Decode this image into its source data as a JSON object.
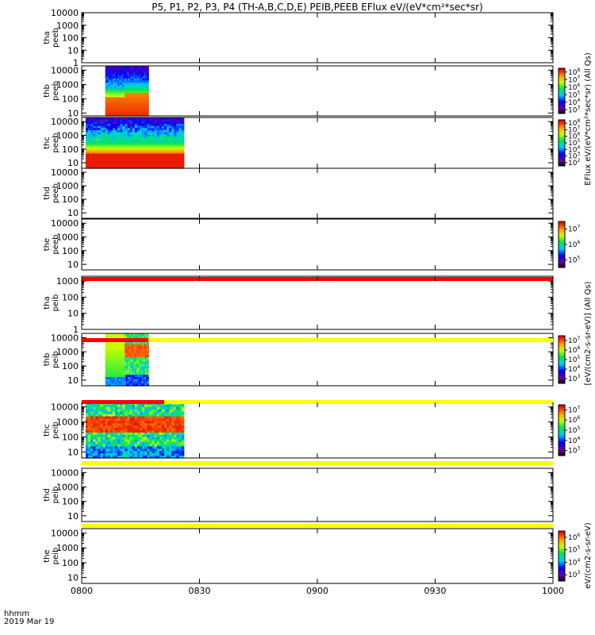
{
  "chart_data": {
    "type": "heatmap",
    "title": "P5, P1, P2, P3, P4 (TH-A,B,C,D,E) PEIB,PEEB EFlux eV/(eV*cm²*sec*sr)",
    "time_label": "hhmm",
    "date_label": "2019 Mar 19",
    "time_range": [
      "08:00",
      "10:00"
    ],
    "x_ticks": [
      "0800",
      "0830",
      "0900",
      "0930",
      "1000"
    ],
    "panels": [
      {
        "probe": "tha",
        "species": "peeb",
        "yticks": [
          "10000",
          "1000",
          "100",
          "10",
          "1"
        ],
        "ylog": [
          0,
          4
        ],
        "blocks": [],
        "colorbar": null
      },
      {
        "probe": "thb",
        "species": "peeb",
        "yticks": [
          "10000",
          "1000",
          "100",
          "10"
        ],
        "ylog": [
          0.8,
          4.3
        ],
        "blocks": [
          {
            "t0": "08:06",
            "t1": "08:17",
            "profile": "electron-b"
          }
        ],
        "colorbar": {
          "ticks": [
            "10^8",
            "10^7",
            "10^6",
            "10^5",
            "10^4",
            "10^3"
          ]
        }
      },
      {
        "probe": "thc",
        "species": "peeb",
        "yticks": [
          "10000",
          "1000",
          "100",
          "10"
        ],
        "ylog": [
          0.6,
          4.3
        ],
        "blocks": [
          {
            "t0": "08:01",
            "t1": "08:26",
            "profile": "electron-c"
          }
        ],
        "colorbar": {
          "ticks": [
            "10^8",
            "10^7",
            "10^6",
            "10^5",
            "10^4",
            "10^3",
            "10^2"
          ]
        }
      },
      {
        "probe": "thd",
        "species": "peeb",
        "yticks": [
          "10000",
          "1000",
          "100",
          "10"
        ],
        "ylog": [
          0.6,
          4.3
        ],
        "blocks": [],
        "colorbar": null
      },
      {
        "probe": "the",
        "species": "peeb",
        "yticks": [
          "10000",
          "1000",
          "100",
          "10"
        ],
        "ylog": [
          0.6,
          4.3
        ],
        "blocks": [],
        "colorbar": {
          "ticks": [
            "10^7",
            "10^6",
            "10^5"
          ]
        }
      },
      {
        "probe": "tha",
        "species": "peib",
        "yticks": [
          "1000",
          "100",
          "10",
          "1"
        ],
        "ylog": [
          0,
          3.3
        ],
        "blocks": [],
        "colorbar": null
      },
      {
        "probe": "thb",
        "species": "peib",
        "yticks": [
          "10000",
          "1000",
          "100",
          "10"
        ],
        "ylog": [
          0.6,
          4.3
        ],
        "blocks": [
          {
            "t0": "08:06",
            "t1": "08:17",
            "profile": "ion-b"
          }
        ],
        "colorbar": {
          "ticks": [
            "10^7",
            "10^6",
            "10^5",
            "10^4",
            "10^3"
          ]
        }
      },
      {
        "probe": "thc",
        "species": "peib",
        "yticks": [
          "10000",
          "1000",
          "100",
          "10"
        ],
        "ylog": [
          0.6,
          4.3
        ],
        "blocks": [
          {
            "t0": "08:01",
            "t1": "08:26",
            "profile": "ion-c"
          }
        ],
        "colorbar": {
          "ticks": [
            "10^7",
            "10^6",
            "10^5",
            "10^4",
            "10^3"
          ]
        }
      },
      {
        "probe": "thd",
        "species": "peib",
        "yticks": [
          "10000",
          "1000",
          "100",
          "10"
        ],
        "ylog": [
          0.6,
          4.3
        ],
        "blocks": [],
        "colorbar": null
      },
      {
        "probe": "the",
        "species": "peib",
        "yticks": [
          "10000",
          "1000",
          "100",
          "10"
        ],
        "ylog": [
          0.6,
          4.3
        ],
        "blocks": [],
        "colorbar": {
          "ticks": [
            "10^6",
            "10^5",
            "10^4",
            "10^3"
          ]
        }
      }
    ],
    "mode_bars": [
      {
        "after_panel": 4,
        "segments": [
          {
            "t0": "08:00",
            "t1": "10:00",
            "color": "#ff0000"
          }
        ]
      },
      {
        "after_panel": 5,
        "segments": [
          {
            "t0": "08:00",
            "t1": "08:17",
            "color": "#ff0000"
          },
          {
            "t0": "08:17",
            "t1": "10:00",
            "color": "#ffff00"
          }
        ]
      },
      {
        "after_panel": 6,
        "segments": [
          {
            "t0": "08:00",
            "t1": "08:21",
            "color": "#ff0000"
          },
          {
            "t0": "08:21",
            "t1": "10:00",
            "color": "#ffff00"
          }
        ]
      },
      {
        "after_panel": 7,
        "segments": [
          {
            "t0": "08:00",
            "t1": "10:00",
            "color": "#ffff00"
          }
        ]
      },
      {
        "after_panel": 8,
        "segments": [
          {
            "t0": "08:00",
            "t1": "10:00",
            "color": "#ffff00"
          }
        ]
      }
    ],
    "colorbar_labels": [
      "EFlux eV/(eV*cm²*sec*sr) (All Qs)",
      "[eV/(cm2-s-sr-eV)] (All Qs)",
      "eV/(cm2-s-sr-eV)"
    ],
    "grid": false,
    "legend": "none"
  }
}
